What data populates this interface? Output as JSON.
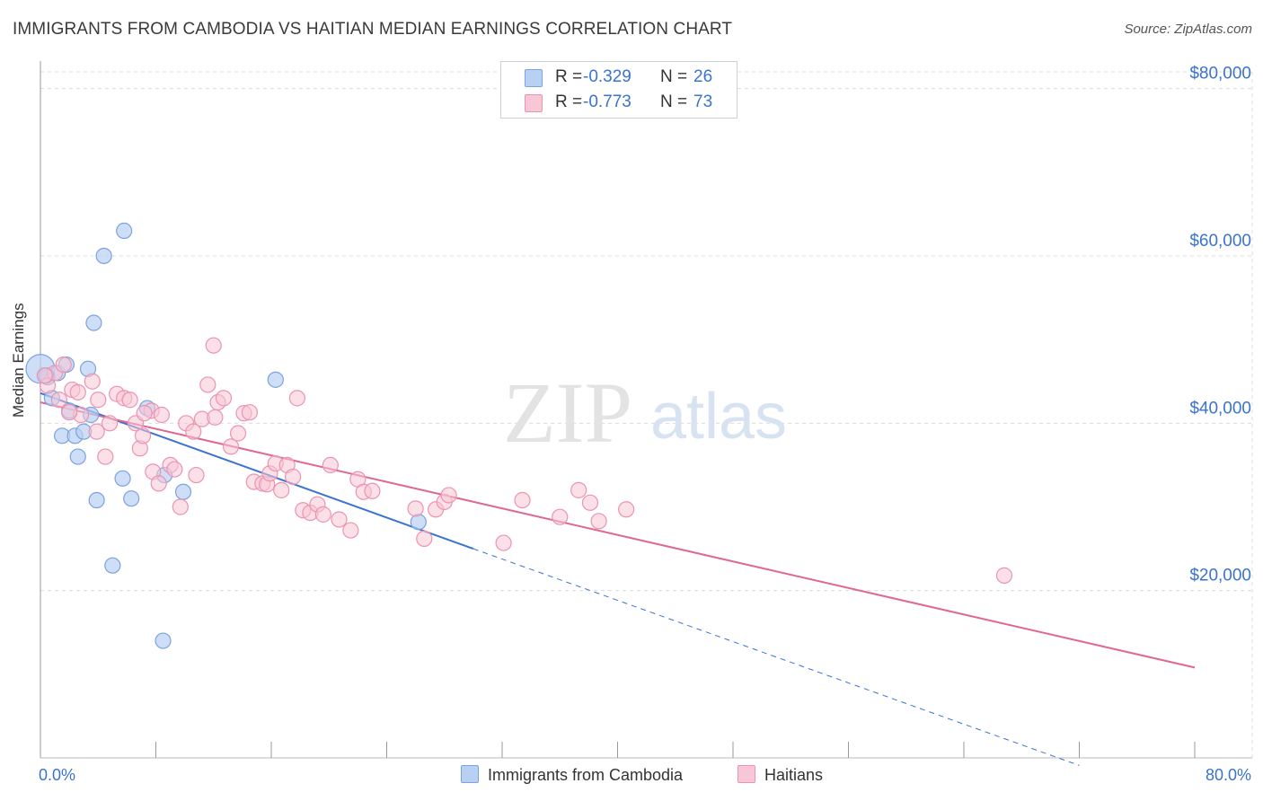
{
  "title": "IMMIGRANTS FROM CAMBODIA VS HAITIAN MEDIAN EARNINGS CORRELATION CHART",
  "source": "Source: ZipAtlas.com",
  "watermark": {
    "zip": "ZIP",
    "atlas": "atlas"
  },
  "colors": {
    "blue_fill": "#b8d0f2",
    "blue_stroke": "#7aa3e0",
    "blue_line": "#3a73d0",
    "pink_fill": "#f8c7d6",
    "pink_stroke": "#ec93b1",
    "pink_line": "#e0688f",
    "axis_label": "#3a73d0",
    "grid": "#dcdcdc"
  },
  "legend": {
    "rows": [
      {
        "series": "Immigrants from Cambodia",
        "r_label": "R =",
        "r_value": "-0.329",
        "n_label": "N =",
        "n_value": "26",
        "color": "blue"
      },
      {
        "series": "Haitians",
        "r_label": "R =",
        "r_value": "-0.773",
        "n_label": "N =",
        "n_value": "73",
        "color": "pink"
      }
    ]
  },
  "bottom_legend": [
    {
      "label": "Immigrants from Cambodia",
      "color": "blue"
    },
    {
      "label": "Haitians",
      "color": "pink"
    }
  ],
  "chart_data": {
    "type": "scatter",
    "title": "IMMIGRANTS FROM CAMBODIA VS HAITIAN MEDIAN EARNINGS CORRELATION CHART",
    "xlabel": "",
    "ylabel": "Median Earnings",
    "xlim": [
      0,
      80
    ],
    "ylim": [
      0,
      82000
    ],
    "x_tick_labels": [
      "0.0%",
      "80.0%"
    ],
    "y_ticks": [
      20000,
      40000,
      60000,
      80000
    ],
    "y_tick_labels": [
      "$20,000",
      "$40,000",
      "$60,000",
      "$80,000"
    ],
    "grid": true,
    "series": [
      {
        "name": "Immigrants from Cambodia",
        "color": "blue",
        "points": [
          [
            0.0,
            46500
          ],
          [
            0.5,
            45500
          ],
          [
            1.2,
            46000
          ],
          [
            1.8,
            47000
          ],
          [
            0.8,
            43000
          ],
          [
            3.3,
            46500
          ],
          [
            4.4,
            60000
          ],
          [
            5.8,
            63000
          ],
          [
            3.7,
            52000
          ],
          [
            1.5,
            38500
          ],
          [
            2.4,
            38500
          ],
          [
            3.0,
            39000
          ],
          [
            2.0,
            41500
          ],
          [
            3.5,
            41000
          ],
          [
            2.6,
            36000
          ],
          [
            3.9,
            30800
          ],
          [
            5.7,
            33400
          ],
          [
            6.3,
            31000
          ],
          [
            7.4,
            41800
          ],
          [
            8.6,
            33800
          ],
          [
            9.9,
            31800
          ],
          [
            5.0,
            23000
          ],
          [
            8.5,
            14000
          ],
          [
            16.3,
            45200
          ],
          [
            26.2,
            28200
          ],
          [
            0.4,
            45700
          ]
        ],
        "trend": {
          "x": [
            0,
            30
          ],
          "y": [
            43600,
            25000
          ],
          "dashed_extension": {
            "x": [
              30,
              72
            ],
            "y": [
              25000,
              -900
            ]
          }
        }
      },
      {
        "name": "Haitians",
        "color": "pink",
        "points": [
          [
            0.5,
            44500
          ],
          [
            1.0,
            46000
          ],
          [
            1.6,
            47000
          ],
          [
            2.2,
            44000
          ],
          [
            1.3,
            42800
          ],
          [
            2.8,
            41000
          ],
          [
            3.6,
            45000
          ],
          [
            4.0,
            42800
          ],
          [
            4.8,
            40000
          ],
          [
            3.9,
            39000
          ],
          [
            4.5,
            36000
          ],
          [
            5.3,
            43500
          ],
          [
            5.8,
            43000
          ],
          [
            6.2,
            42800
          ],
          [
            6.6,
            40000
          ],
          [
            6.9,
            37000
          ],
          [
            7.1,
            38500
          ],
          [
            7.7,
            41500
          ],
          [
            8.4,
            41000
          ],
          [
            7.8,
            34200
          ],
          [
            8.2,
            32800
          ],
          [
            9.0,
            35000
          ],
          [
            9.3,
            34500
          ],
          [
            9.7,
            30000
          ],
          [
            10.1,
            40000
          ],
          [
            10.6,
            39000
          ],
          [
            10.8,
            33800
          ],
          [
            11.2,
            40500
          ],
          [
            11.6,
            44600
          ],
          [
            12.0,
            49300
          ],
          [
            12.3,
            42500
          ],
          [
            12.7,
            43000
          ],
          [
            13.2,
            37200
          ],
          [
            13.7,
            38800
          ],
          [
            14.1,
            41200
          ],
          [
            14.5,
            41300
          ],
          [
            14.8,
            33000
          ],
          [
            15.4,
            32800
          ],
          [
            15.7,
            32700
          ],
          [
            15.9,
            34000
          ],
          [
            16.3,
            35200
          ],
          [
            16.7,
            32000
          ],
          [
            17.1,
            35000
          ],
          [
            17.5,
            33600
          ],
          [
            17.8,
            43000
          ],
          [
            18.2,
            29600
          ],
          [
            18.7,
            29300
          ],
          [
            19.2,
            30300
          ],
          [
            19.6,
            29100
          ],
          [
            20.1,
            35000
          ],
          [
            20.7,
            28500
          ],
          [
            21.5,
            27200
          ],
          [
            22.0,
            33300
          ],
          [
            22.4,
            31800
          ],
          [
            26.0,
            29800
          ],
          [
            26.6,
            26200
          ],
          [
            27.4,
            29700
          ],
          [
            28.0,
            30600
          ],
          [
            28.3,
            31400
          ],
          [
            32.1,
            25700
          ],
          [
            33.4,
            30800
          ],
          [
            36.0,
            28800
          ],
          [
            37.3,
            32000
          ],
          [
            38.1,
            30500
          ],
          [
            38.7,
            28300
          ],
          [
            40.6,
            29700
          ],
          [
            66.8,
            21800
          ],
          [
            0.3,
            45700
          ],
          [
            2.6,
            43700
          ],
          [
            2.0,
            41300
          ],
          [
            7.2,
            41200
          ],
          [
            12.1,
            40700
          ],
          [
            23.0,
            31900
          ]
        ],
        "trend": {
          "x": [
            0,
            80
          ],
          "y": [
            42500,
            10800
          ]
        }
      }
    ]
  }
}
